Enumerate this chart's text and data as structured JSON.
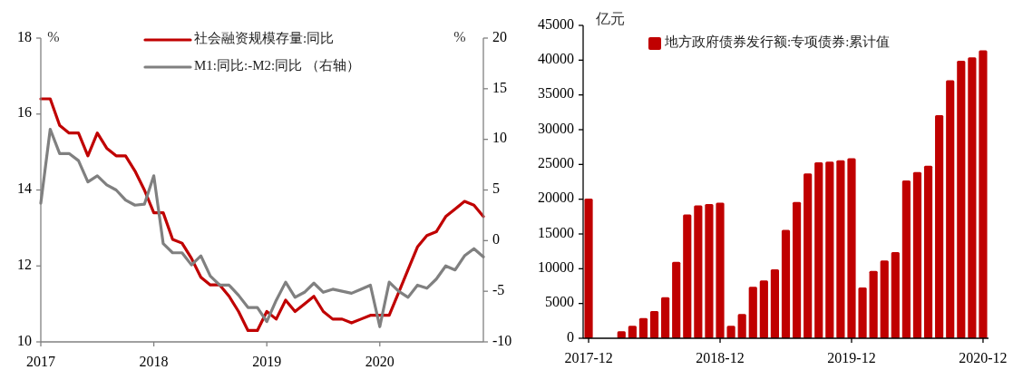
{
  "chart_data": [
    {
      "type": "line",
      "x": [
        "2017-01",
        "2017-02",
        "2017-03",
        "2017-04",
        "2017-05",
        "2017-06",
        "2017-07",
        "2017-08",
        "2017-09",
        "2017-10",
        "2017-11",
        "2017-12",
        "2018-01",
        "2018-02",
        "2018-03",
        "2018-04",
        "2018-05",
        "2018-06",
        "2018-07",
        "2018-08",
        "2018-09",
        "2018-10",
        "2018-11",
        "2018-12",
        "2019-01",
        "2019-02",
        "2019-03",
        "2019-04",
        "2019-05",
        "2019-06",
        "2019-07",
        "2019-08",
        "2019-09",
        "2019-10",
        "2019-11",
        "2019-12",
        "2020-01",
        "2020-02",
        "2020-03",
        "2020-04",
        "2020-05",
        "2020-06",
        "2020-07",
        "2020-08",
        "2020-09",
        "2020-10",
        "2020-11",
        "2020-12"
      ],
      "series": [
        {
          "name": "社会融资规模存量:同比",
          "color": "#c00000",
          "values": [
            16.4,
            16.4,
            15.7,
            15.5,
            15.5,
            14.9,
            15.5,
            15.1,
            14.9,
            14.9,
            14.5,
            14.0,
            13.4,
            13.4,
            12.7,
            12.6,
            12.2,
            11.7,
            11.5,
            11.5,
            11.2,
            10.8,
            10.3,
            10.3,
            10.8,
            10.6,
            11.1,
            10.8,
            11.0,
            11.2,
            10.8,
            10.6,
            10.6,
            10.5,
            10.6,
            10.7,
            10.7,
            10.7,
            11.3,
            11.9,
            12.5,
            12.8,
            12.9,
            13.3,
            13.5,
            13.7,
            13.6,
            13.3
          ]
        },
        {
          "name": "M1:同比:-M2:同比 （右轴）",
          "color": "#808080",
          "axis": "y2",
          "values": [
            3.7,
            11.0,
            8.6,
            8.6,
            7.9,
            5.8,
            6.4,
            5.5,
            5.0,
            4.0,
            3.5,
            3.6,
            6.4,
            -0.3,
            -1.2,
            -1.2,
            -2.4,
            -1.5,
            -3.5,
            -4.4,
            -4.4,
            -5.4,
            -6.6,
            -6.6,
            -8.0,
            -5.9,
            -4.1,
            -5.6,
            -5.1,
            -4.2,
            -5.1,
            -4.8,
            -5.0,
            -5.2,
            -4.8,
            -4.4,
            -8.5,
            -4.1,
            -5.0,
            -5.6,
            -4.4,
            -4.7,
            -3.8,
            -2.5,
            -2.9,
            -1.5,
            -0.8,
            -1.6
          ]
        }
      ],
      "xlim": [
        "2017-01",
        "2020-12"
      ],
      "xticks": [
        "2017",
        "2018",
        "2019",
        "2020"
      ],
      "ylim": [
        10,
        18
      ],
      "yticks": [
        10,
        12,
        14,
        16,
        18
      ],
      "ylabel": "%",
      "y2lim": [
        -10,
        20
      ],
      "y2ticks": [
        -10,
        -5,
        0,
        5,
        10,
        15,
        20
      ],
      "y2label": "%",
      "legend": "top"
    },
    {
      "type": "bar",
      "categories": [
        "2017-12",
        null,
        null,
        null,
        null,
        null,
        null,
        null,
        null,
        null,
        null,
        null,
        "2018-12",
        null,
        null,
        null,
        null,
        null,
        null,
        null,
        null,
        null,
        null,
        null,
        "2019-12",
        null,
        null,
        null,
        null,
        null,
        null,
        null,
        null,
        null,
        null,
        null,
        "2020-12"
      ],
      "series": [
        {
          "name": "地方政府债券发行额:专项债券:累计值",
          "color": "#c00000",
          "values": [
            20100,
            0,
            0,
            1000,
            1800,
            2900,
            3900,
            5900,
            11000,
            17800,
            19100,
            19300,
            19500,
            1800,
            3500,
            7400,
            8300,
            9900,
            15600,
            19600,
            23700,
            25300,
            25400,
            25600,
            25900,
            7300,
            9700,
            11200,
            12400,
            22700,
            23900,
            24800,
            32100,
            37100,
            39900,
            40400,
            41400
          ]
        }
      ],
      "ylim": [
        0,
        45000
      ],
      "yticks": [
        0,
        5000,
        10000,
        15000,
        20000,
        25000,
        30000,
        35000,
        40000,
        45000
      ],
      "ylabel": "亿元",
      "legend": "top"
    }
  ]
}
